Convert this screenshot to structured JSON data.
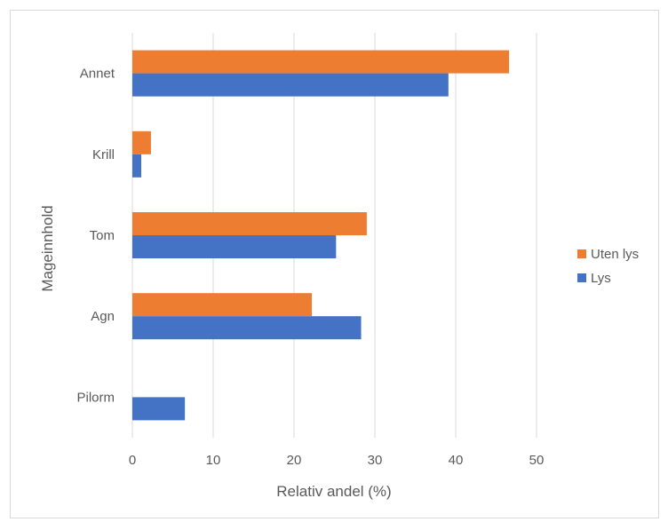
{
  "chart_data": {
    "type": "bar",
    "orientation": "horizontal",
    "categories": [
      "Annet",
      "Krill",
      "Tom",
      "Agn",
      "Pilorm"
    ],
    "series": [
      {
        "name": "Uten lys",
        "color": "#ed7d31",
        "values": [
          46.6,
          2.3,
          29.0,
          22.2,
          0
        ]
      },
      {
        "name": "Lys",
        "color": "#4472c4",
        "values": [
          39.1,
          1.1,
          25.2,
          28.3,
          6.5
        ]
      }
    ],
    "xlabel": "Relativ andel (%)",
    "ylabel": "Mageinnhold",
    "xlim": [
      0,
      50
    ],
    "xticks": [
      "0",
      "10",
      "20",
      "30",
      "40",
      "50"
    ],
    "grid": true,
    "legend_position": "right"
  }
}
